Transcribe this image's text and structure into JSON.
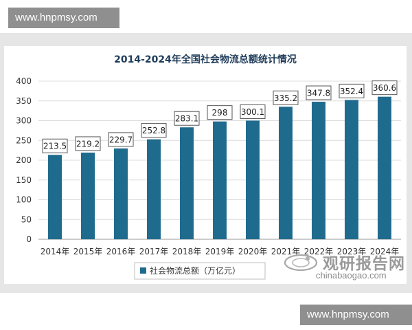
{
  "watermark": {
    "top_text": "www.hnpmsy.com",
    "bottom_text": "www.hnpmsy.com"
  },
  "brand": {
    "name": "观研报告网",
    "url": "chinabaogao.com"
  },
  "colors": {
    "bar": "#1f6b8e",
    "band": "#e6e6e6",
    "grid": "#dcdcdc",
    "title": "#1f3c5a"
  },
  "chart_data": {
    "type": "bar",
    "title": "2014-2024年全国社会物流总额统计情况",
    "xlabel": "",
    "ylabel": "",
    "categories": [
      "2014年",
      "2015年",
      "2016年",
      "2017年",
      "2018年",
      "2019年",
      "2020年",
      "2021年",
      "2022年",
      "2023年",
      "2024年"
    ],
    "series": [
      {
        "name": "社会物流总额（万亿元）",
        "values": [
          213.5,
          219.2,
          229.7,
          252.8,
          283.1,
          298,
          300.1,
          335.2,
          347.8,
          352.4,
          360.6
        ],
        "labels": [
          "213.5",
          "219.2",
          "229.7",
          "252.8",
          "283.1",
          "298",
          "300.1",
          "335.2",
          "347.8",
          "352.4",
          "360.6"
        ]
      }
    ],
    "ylim": [
      0,
      400
    ],
    "yticks": [
      0,
      50,
      100,
      150,
      200,
      250,
      300,
      350,
      400
    ],
    "grid": true,
    "legend_position": "bottom"
  }
}
